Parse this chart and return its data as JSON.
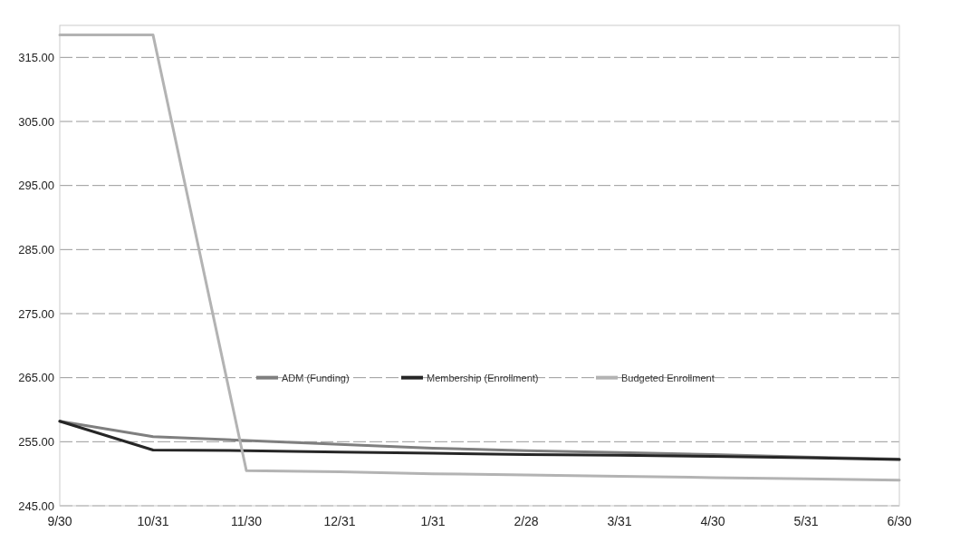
{
  "chart_data": {
    "type": "line",
    "categories": [
      "9/30",
      "10/31",
      "11/30",
      "12/31",
      "1/31",
      "2/28",
      "3/31",
      "4/30",
      "5/31",
      "6/30"
    ],
    "series": [
      {
        "name": "ADM (Funding)",
        "color": "#7f7f7f",
        "values": [
          258.2,
          255.8,
          255.2,
          254.6,
          254.0,
          253.6,
          253.3,
          253.0,
          252.6,
          252.3
        ]
      },
      {
        "name": "Membership (Enrollment)",
        "color": "#262626",
        "values": [
          258.2,
          253.7,
          253.6,
          253.4,
          253.2,
          253.0,
          252.9,
          252.7,
          252.5,
          252.2
        ]
      },
      {
        "name": "Budgeted Enrollment",
        "color": "#b3b3b3",
        "values": [
          318.5,
          318.5,
          250.5,
          250.3,
          250.0,
          249.8,
          249.6,
          249.4,
          249.2,
          249.0
        ]
      }
    ],
    "ylim": [
      245,
      320
    ],
    "yticks": [
      {
        "value": 245,
        "label": "245.00"
      },
      {
        "value": 255,
        "label": "255.00"
      },
      {
        "value": 265,
        "label": "265.00"
      },
      {
        "value": 275,
        "label": "275.00"
      },
      {
        "value": 285,
        "label": "285.00"
      },
      {
        "value": 295,
        "label": "295.00"
      },
      {
        "value": 305,
        "label": "305.00"
      },
      {
        "value": 315,
        "label": "315.00"
      }
    ],
    "grid": "y",
    "legend": "bottom",
    "marker": "none",
    "line_style": "solid"
  }
}
